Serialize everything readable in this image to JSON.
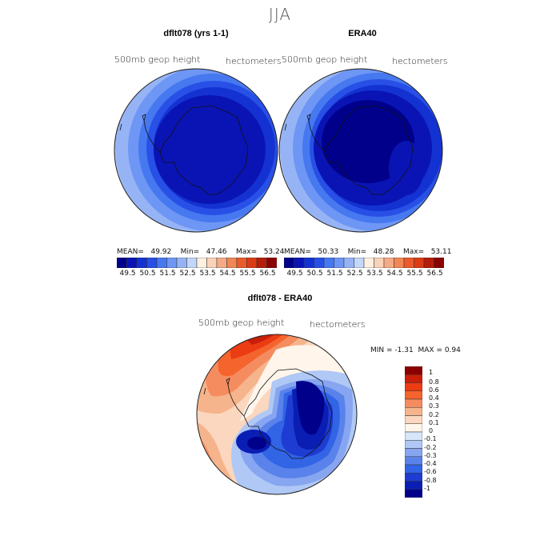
{
  "season": "JJA",
  "panels": [
    {
      "title": "dflt078 (yrs 1-1)",
      "field": "500mb geop height",
      "units": "hectometers",
      "stats": "MEAN=   49.92    Min=   47.46    Max=   53.24"
    },
    {
      "title": "ERA40",
      "field": "500mb geop height",
      "units": "hectometers",
      "stats": "MEAN=   50.33    Min=   48.28    Max=   53.11"
    }
  ],
  "colorbar_top": {
    "ticks": [
      "49.5",
      "50.5",
      "51.5",
      "52.5",
      "53.5",
      "54.5",
      "55.5",
      "56.5"
    ],
    "colors": [
      "#00008b",
      "#0a14b4",
      "#1432d2",
      "#2850e6",
      "#4678f0",
      "#6e96f5",
      "#96b4f5",
      "#c3d7fa",
      "#fff0e1",
      "#fad2b9",
      "#f5aa87",
      "#f08755",
      "#eb5a2d",
      "#dc3c14",
      "#b41e0a",
      "#8b0000"
    ]
  },
  "diff_panel": {
    "title": "dflt078 - ERA40",
    "field": "500mb geop height",
    "units": "hectometers",
    "min_label": "MIN = ",
    "min_value": "-1.31",
    "max_label": "MAX = ",
    "max_value": "0.94"
  },
  "colorbar_diff": {
    "labels": [
      "1",
      "0.8",
      "0.6",
      "0.4",
      "0.3",
      "0.2",
      "0.1",
      "0",
      "-0.1",
      "-0.2",
      "-0.3",
      "-0.4",
      "-0.6",
      "-0.8",
      "-1"
    ],
    "colors": [
      "#8b0000",
      "#c81e0a",
      "#eb3c14",
      "#f5642d",
      "#f58c5f",
      "#f5b48c",
      "#fad7be",
      "#fff5eb",
      "#d7e6fa",
      "#afc8f5",
      "#87a5f0",
      "#5a82eb",
      "#3264e6",
      "#1e3cd2",
      "#0a1eb4",
      "#00008b"
    ]
  }
}
